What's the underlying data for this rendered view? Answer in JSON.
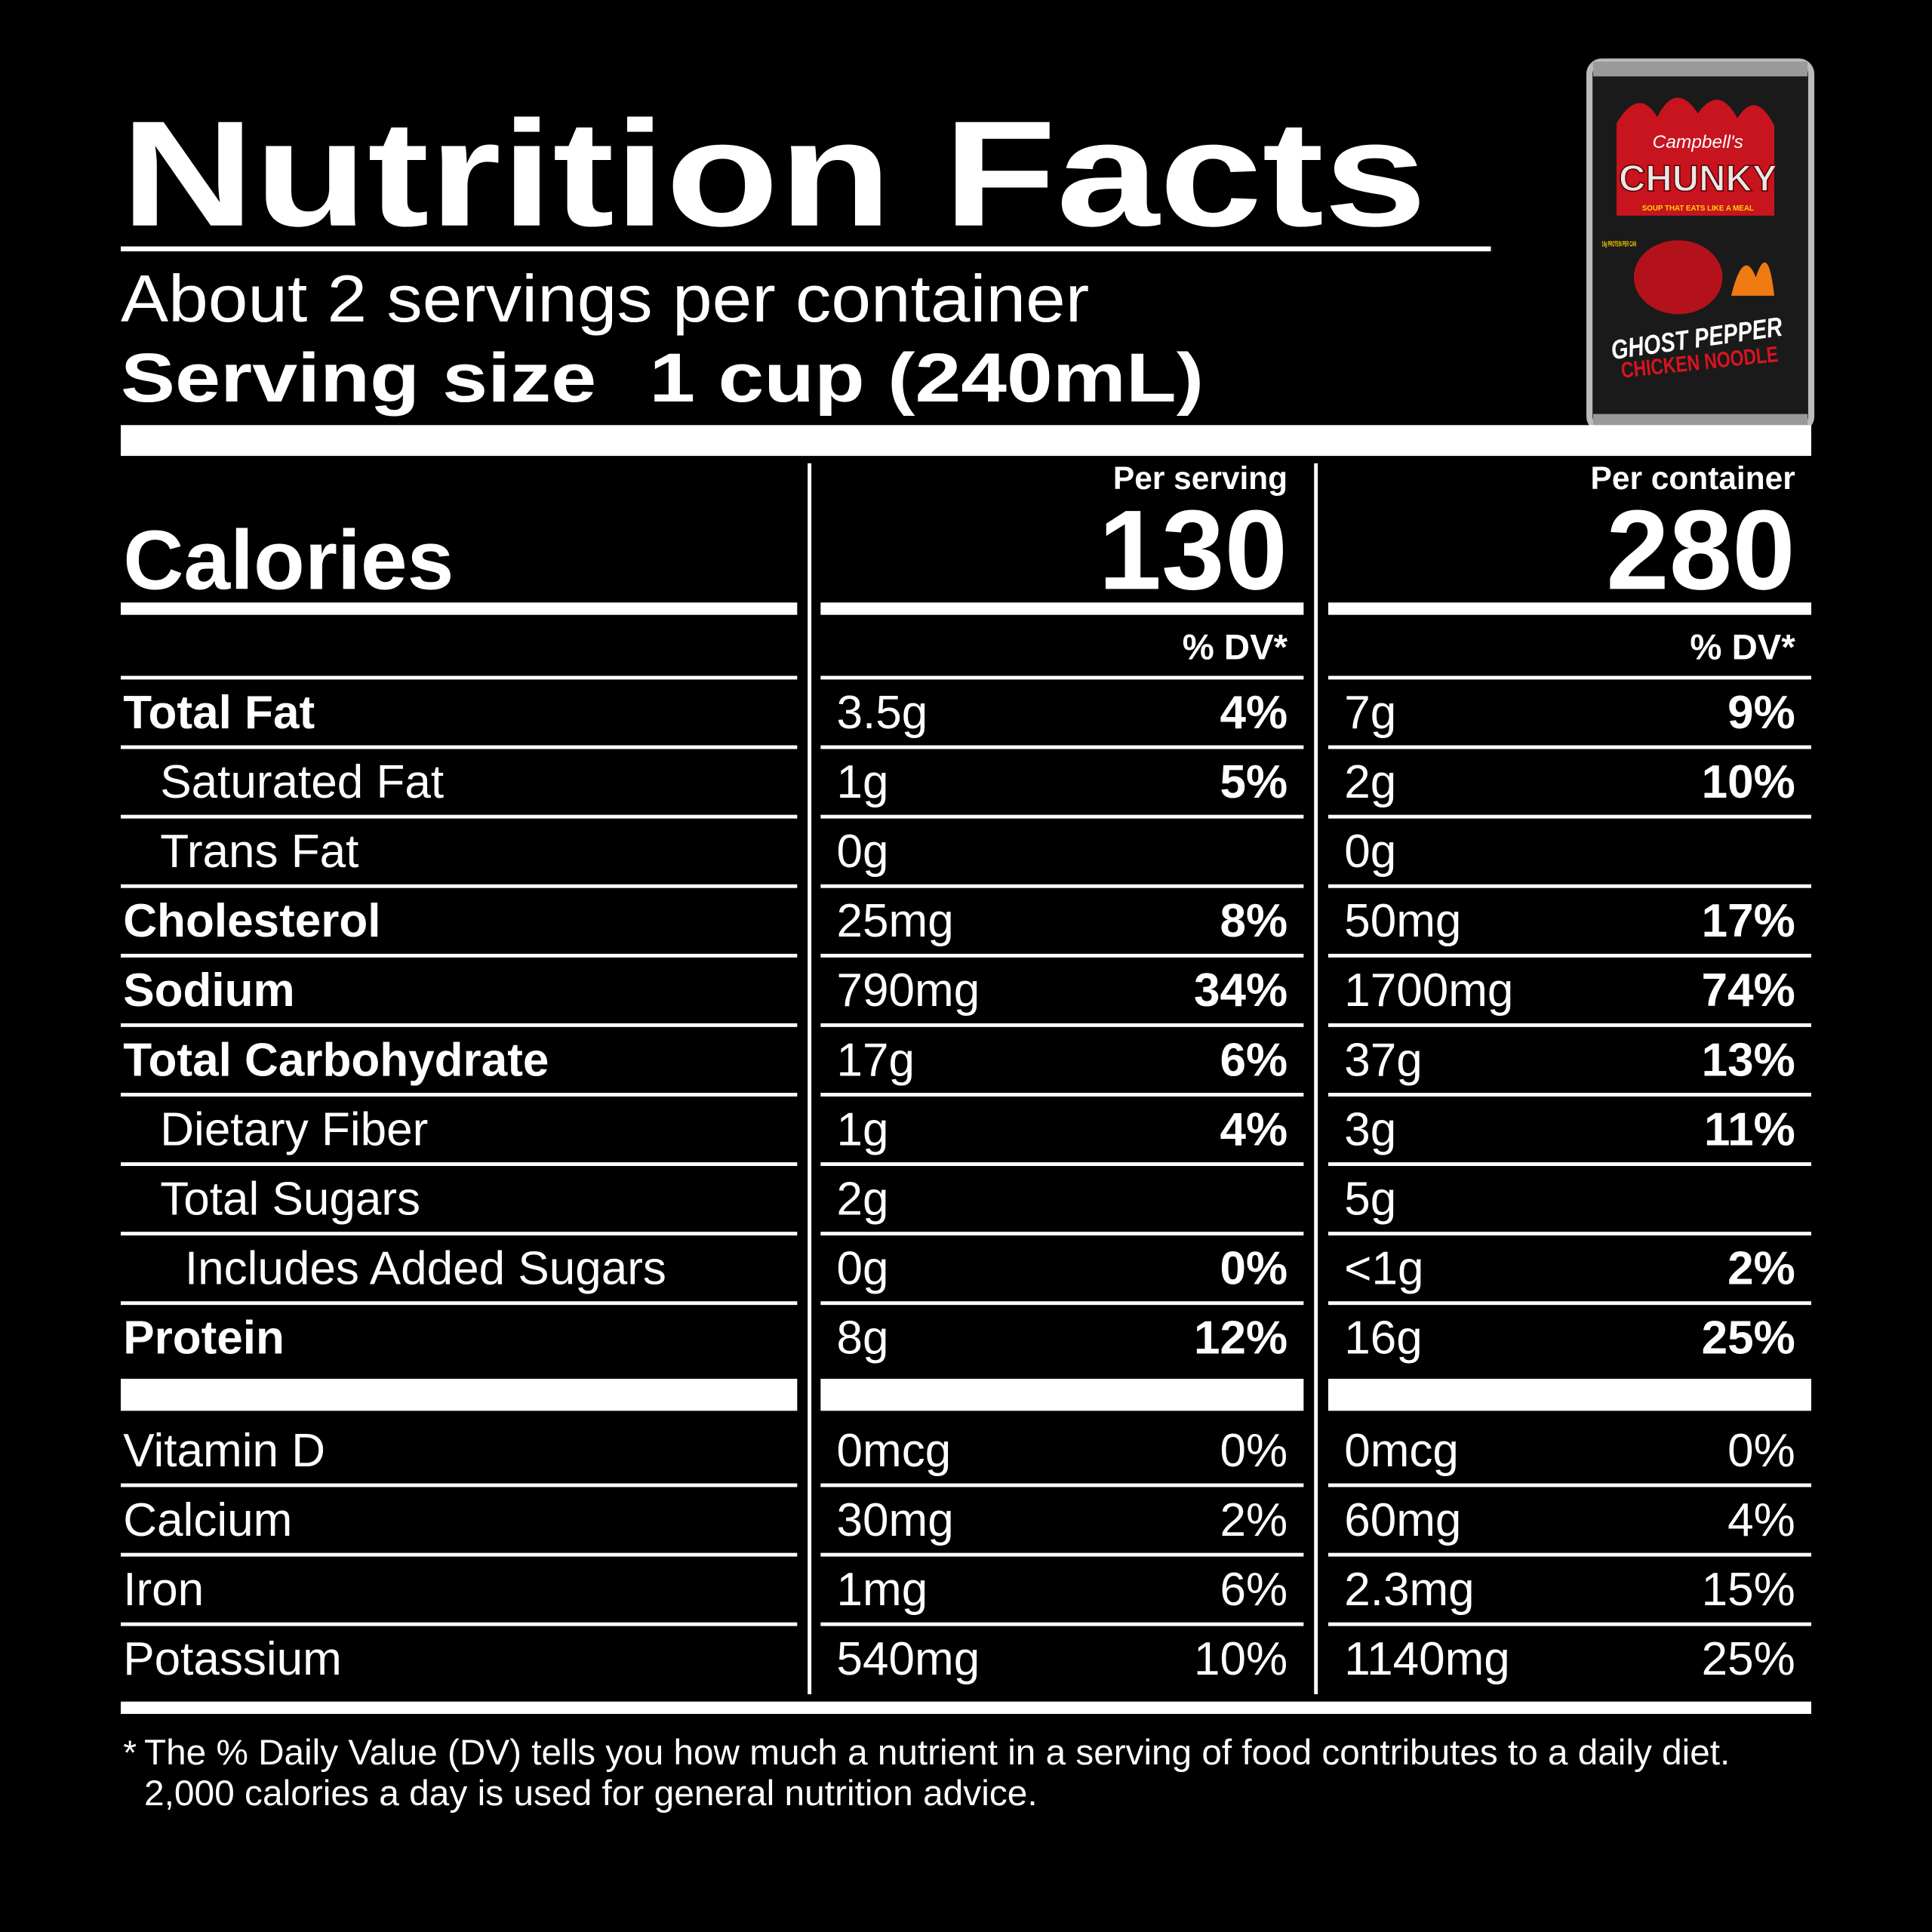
{
  "header": {
    "title": "Nutrition Facts",
    "servings": "About 2 servings per container",
    "serving_size_label": "Serving size",
    "serving_size": "1 cup (240mL)"
  },
  "calories": {
    "label": "Calories"
  },
  "columns": [
    {
      "heading": "Per serving",
      "calories": 130,
      "dv_heading": "% DV*"
    },
    {
      "heading": "Per container",
      "calories": 280,
      "dv_heading": "% DV*"
    }
  ],
  "nutrients": [
    {
      "name": "Total Fat",
      "values": [
        {
          "amount": "3.5g",
          "dv": "4%"
        },
        {
          "amount": "7g",
          "dv": "9%"
        }
      ],
      "items": [
        {
          "name": "Saturated Fat",
          "values": [
            {
              "amount": "1g",
              "dv": "5%"
            },
            {
              "amount": "2g",
              "dv": "10%"
            }
          ]
        },
        {
          "name": "Trans Fat",
          "values": [
            {
              "amount": "0g"
            },
            {
              "amount": "0g"
            }
          ]
        }
      ]
    },
    {
      "name": "Cholesterol",
      "values": [
        {
          "amount": "25mg",
          "dv": "8%"
        },
        {
          "amount": "50mg",
          "dv": "17%"
        }
      ]
    },
    {
      "name": "Sodium",
      "values": [
        {
          "amount": "790mg",
          "dv": "34%"
        },
        {
          "amount": "1700mg",
          "dv": "74%"
        }
      ]
    },
    {
      "name": "Total Carbohydrate",
      "values": [
        {
          "amount": "17g",
          "dv": "6%"
        },
        {
          "amount": "37g",
          "dv": "13%"
        }
      ],
      "items": [
        {
          "name": "Dietary Fiber",
          "values": [
            {
              "amount": "1g",
              "dv": "4%"
            },
            {
              "amount": "3g",
              "dv": "11%"
            }
          ]
        },
        {
          "name": "Total Sugars",
          "values": [
            {
              "amount": "2g"
            },
            {
              "amount": "5g"
            }
          ],
          "items": [
            {
              "name": "Includes Added Sugars",
              "values": [
                {
                  "amount": "0g",
                  "dv": "0%"
                },
                {
                  "amount": "<1g",
                  "dv": "2%"
                }
              ]
            }
          ]
        }
      ]
    },
    {
      "name": "Protein",
      "values": [
        {
          "amount": "8g",
          "dv": "12%"
        },
        {
          "amount": "16g",
          "dv": "25%"
        }
      ]
    }
  ],
  "vitamins": [
    {
      "name": "Vitamin D",
      "values": [
        {
          "amount": "0mcg",
          "dv": "0%"
        },
        {
          "amount": "0mcg",
          "dv": "0%"
        }
      ]
    },
    {
      "name": "Calcium",
      "values": [
        {
          "amount": "30mg",
          "dv": "2%"
        },
        {
          "amount": "60mg",
          "dv": "4%"
        }
      ]
    },
    {
      "name": "Iron",
      "values": [
        {
          "amount": "1mg",
          "dv": "6%"
        },
        {
          "amount": "2.3mg",
          "dv": "15%"
        }
      ]
    },
    {
      "name": "Potassium",
      "values": [
        {
          "amount": "540mg",
          "dv": "10%"
        },
        {
          "amount": "1140mg",
          "dv": "25%"
        }
      ]
    }
  ],
  "footnote": {
    "marker": "*",
    "lines": [
      "The % Daily Value (DV) tells you how much a nutrient in a serving of food contributes to a daily diet.",
      "2,000 calories a day is used for general nutrition advice."
    ]
  },
  "product": {
    "brand": "Campbell's",
    "name": "CHUNKY",
    "tagline": "SOUP THAT EATS LIKE A MEAL",
    "protein": "16g PROTEIN PER CAN",
    "flavor": [
      "GHOST PEPPER",
      "CHICKEN NOODLE"
    ]
  }
}
